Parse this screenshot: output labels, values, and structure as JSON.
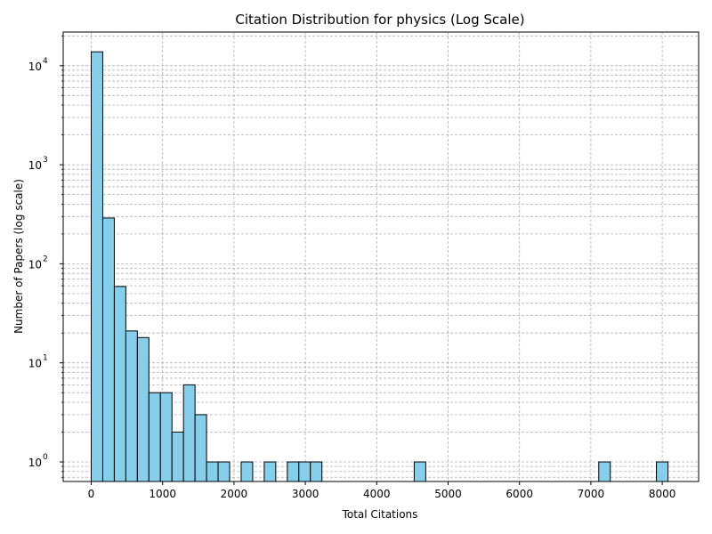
{
  "chart_data": {
    "type": "bar",
    "subtype": "histogram",
    "title": "Citation Distribution for physics (Log Scale)",
    "xlabel": "Total Citations",
    "ylabel": "Number of Papers (log scale)",
    "yscale": "log",
    "xlim": [
      -410,
      8490
    ],
    "ylim": [
      0.63,
      21000
    ],
    "grid": true,
    "bar_color": "#87CEEB",
    "edge_color": "#000000",
    "bin_width": 161.6,
    "num_bins": 50,
    "x_ticks": [
      "0",
      "1000",
      "2000",
      "3000",
      "4000",
      "5000",
      "6000",
      "7000",
      "8000"
    ],
    "y_ticks": [
      "10^0",
      "10^1",
      "10^2",
      "10^3",
      "10^4"
    ],
    "bins": [
      {
        "start": 0,
        "count": 13800
      },
      {
        "start": 161.6,
        "count": 290
      },
      {
        "start": 323.2,
        "count": 59
      },
      {
        "start": 484.8,
        "count": 21
      },
      {
        "start": 646.4,
        "count": 18
      },
      {
        "start": 808.0,
        "count": 5
      },
      {
        "start": 969.6,
        "count": 5
      },
      {
        "start": 1131.2,
        "count": 2
      },
      {
        "start": 1292.8,
        "count": 6
      },
      {
        "start": 1454.4,
        "count": 3
      },
      {
        "start": 1616.0,
        "count": 1
      },
      {
        "start": 1777.6,
        "count": 1
      },
      {
        "start": 2100.8,
        "count": 1
      },
      {
        "start": 2424.0,
        "count": 1
      },
      {
        "start": 2747.2,
        "count": 1
      },
      {
        "start": 2908.8,
        "count": 1
      },
      {
        "start": 3070.4,
        "count": 1
      },
      {
        "start": 4524.8,
        "count": 1
      },
      {
        "start": 7110.4,
        "count": 1
      },
      {
        "start": 7918.4,
        "count": 1
      }
    ]
  }
}
